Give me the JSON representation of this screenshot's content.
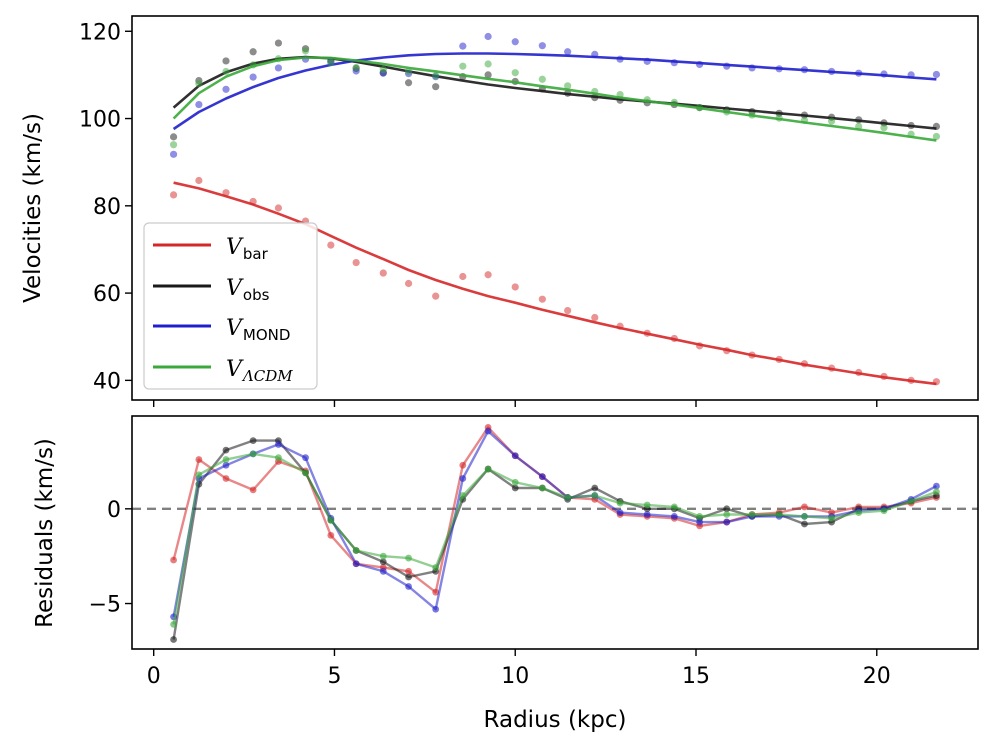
{
  "chart_data": [
    {
      "type": "line",
      "panel": "top",
      "title": "",
      "xlabel": "",
      "ylabel": "Velocities (km/s)",
      "xlim": [
        -0.6,
        22.8
      ],
      "ylim": [
        35.5,
        123.5
      ],
      "xticks": [
        0,
        5,
        10,
        15,
        20
      ],
      "yticks": [
        40,
        60,
        80,
        100,
        120
      ],
      "ytick_labels": [
        "40",
        "60",
        "80",
        "100",
        "120"
      ],
      "legend": {
        "position": "lower-left",
        "entries": [
          {
            "symbol": "V",
            "subscript": "bar",
            "subscript_italic": false,
            "color": "#d62728"
          },
          {
            "symbol": "V",
            "subscript": "obs",
            "subscript_italic": false,
            "color": "#1a1a1a"
          },
          {
            "symbol": "V",
            "subscript": "MOND",
            "subscript_italic": false,
            "color": "#1f1fcc"
          },
          {
            "symbol": "V",
            "subscript": "ΛCDM",
            "subscript_italic": true,
            "color": "#3aa83a"
          }
        ]
      },
      "x": [
        0.55,
        1.25,
        2.0,
        2.75,
        3.45,
        4.2,
        4.9,
        5.6,
        6.35,
        7.05,
        7.8,
        8.55,
        9.25,
        10.0,
        10.75,
        11.45,
        12.2,
        12.9,
        13.65,
        14.4,
        15.1,
        15.85,
        16.55,
        17.3,
        18.0,
        18.75,
        19.5,
        20.2,
        20.95,
        21.65
      ],
      "series": [
        {
          "name": "V_bar",
          "color": "#d62728",
          "points": [
            82.5,
            85.8,
            83.0,
            81.0,
            79.5,
            76.5,
            71.0,
            67.0,
            64.6,
            62.2,
            59.3,
            63.8,
            64.2,
            61.4,
            58.6,
            56.0,
            54.4,
            52.4,
            50.8,
            49.6,
            47.9,
            46.8,
            45.8,
            44.8,
            43.8,
            42.8,
            41.8,
            40.9,
            40.0,
            39.7
          ],
          "model": [
            85.3,
            84.0,
            82.2,
            80.3,
            78.2,
            75.8,
            73.1,
            70.4,
            67.8,
            65.3,
            63.0,
            61.0,
            59.3,
            57.8,
            56.2,
            54.8,
            53.3,
            52.0,
            50.7,
            49.4,
            48.2,
            47.0,
            45.8,
            44.7,
            43.6,
            42.6,
            41.6,
            40.7,
            39.9,
            39.2
          ]
        },
        {
          "name": "V_obs",
          "color": "#1a1a1a",
          "points": [
            95.8,
            108.7,
            113.2,
            115.3,
            117.3,
            116.0,
            113.3,
            111.5,
            110.5,
            108.2,
            107.3,
            109.6,
            110.0,
            108.5,
            106.8,
            105.8,
            104.8,
            104.2,
            103.6,
            103.2,
            102.5,
            102.0,
            101.6,
            101.2,
            100.8,
            100.3,
            99.7,
            99.0,
            98.4,
            98.2
          ],
          "model": [
            102.5,
            107.5,
            110.6,
            112.6,
            113.7,
            114.1,
            113.8,
            113.0,
            111.9,
            110.8,
            109.7,
            108.7,
            107.8,
            107.0,
            106.3,
            105.6,
            105.0,
            104.4,
            103.9,
            103.4,
            102.9,
            102.3,
            101.8,
            101.2,
            100.7,
            100.1,
            99.5,
            98.9,
            98.3,
            97.7
          ]
        },
        {
          "name": "V_MOND",
          "color": "#1f1fcc",
          "points": [
            91.8,
            103.2,
            106.7,
            109.5,
            111.6,
            113.6,
            113.0,
            110.9,
            110.4,
            110.3,
            109.6,
            116.6,
            118.8,
            117.6,
            116.7,
            115.3,
            114.7,
            113.6,
            113.1,
            112.8,
            112.4,
            112.0,
            111.6,
            111.4,
            111.2,
            110.8,
            110.4,
            110.2,
            110.0,
            110.1
          ],
          "model": [
            97.6,
            101.5,
            104.6,
            107.2,
            109.3,
            111.0,
            112.3,
            113.3,
            114.0,
            114.5,
            114.8,
            114.9,
            114.9,
            114.8,
            114.6,
            114.4,
            114.1,
            113.8,
            113.5,
            113.1,
            112.7,
            112.3,
            111.9,
            111.5,
            111.1,
            110.7,
            110.3,
            109.9,
            109.4,
            109.0
          ]
        },
        {
          "name": "V_LCDM",
          "color": "#3aa83a",
          "points": [
            94.0,
            108.0,
            110.8,
            112.3,
            113.7,
            115.5,
            112.8,
            111.7,
            111.2,
            110.8,
            109.8,
            112.0,
            112.5,
            110.5,
            109.0,
            107.5,
            106.2,
            105.5,
            104.3,
            103.7,
            102.5,
            101.5,
            100.8,
            100.1,
            99.6,
            99.4,
            98.2,
            97.9,
            96.4,
            95.9
          ],
          "model": [
            100.0,
            105.8,
            109.6,
            112.0,
            113.4,
            114.0,
            113.9,
            113.3,
            112.5,
            111.6,
            110.8,
            109.9,
            109.1,
            108.3,
            107.4,
            106.6,
            105.7,
            104.8,
            104.0,
            103.2,
            102.4,
            101.5,
            100.7,
            99.9,
            99.1,
            98.3,
            97.5,
            96.7,
            95.8,
            95.0
          ]
        }
      ]
    },
    {
      "type": "line",
      "panel": "bottom",
      "title": "",
      "xlabel": "Radius (kpc)",
      "ylabel": "Residuals (km/s)",
      "xlim": [
        -0.6,
        22.8
      ],
      "ylim": [
        -7.4,
        4.9
      ],
      "xticks": [
        0,
        5,
        10,
        15,
        20
      ],
      "xtick_labels": [
        "0",
        "5",
        "10",
        "15",
        "20"
      ],
      "yticks": [
        -5,
        0
      ],
      "ytick_labels": [
        "−5",
        "0"
      ],
      "zero_line_color": "#808080",
      "x": [
        0.55,
        1.25,
        2.0,
        2.75,
        3.45,
        4.2,
        4.9,
        5.6,
        6.35,
        7.05,
        7.8,
        8.55,
        9.25,
        10.0,
        10.75,
        11.45,
        12.2,
        12.9,
        13.65,
        14.4,
        15.1,
        15.85,
        16.55,
        17.3,
        18.0,
        18.75,
        19.5,
        20.2,
        20.95,
        21.65
      ],
      "series": [
        {
          "name": "bar residual",
          "color": "#d62728",
          "values": [
            -2.7,
            2.6,
            1.6,
            1.0,
            2.5,
            2.0,
            -1.4,
            -2.9,
            -3.1,
            -3.3,
            -4.4,
            2.3,
            4.3,
            2.8,
            1.7,
            0.6,
            0.5,
            -0.3,
            -0.4,
            -0.5,
            -0.9,
            -0.7,
            -0.3,
            -0.2,
            0.1,
            -0.2,
            0.1,
            0.1,
            0.3,
            0.6
          ]
        },
        {
          "name": "obs residual",
          "color": "#1a1a1a",
          "values": [
            -6.9,
            1.3,
            3.1,
            3.6,
            3.6,
            1.9,
            -0.6,
            -2.2,
            -2.8,
            -3.6,
            -3.3,
            0.5,
            2.1,
            1.1,
            1.1,
            0.5,
            1.1,
            0.4,
            0.0,
            0.0,
            -0.5,
            0.0,
            -0.4,
            -0.3,
            -0.8,
            -0.7,
            0.0,
            0.0,
            0.4,
            0.7
          ]
        },
        {
          "name": "MOND residual",
          "color": "#1f1fcc",
          "values": [
            -5.7,
            1.6,
            2.3,
            2.9,
            3.4,
            2.7,
            -0.5,
            -2.9,
            -3.3,
            -4.1,
            -5.3,
            1.6,
            4.1,
            2.8,
            1.7,
            0.6,
            0.7,
            -0.2,
            -0.3,
            -0.4,
            -0.7,
            -0.7,
            -0.4,
            -0.4,
            -0.4,
            -0.4,
            -0.1,
            0.0,
            0.5,
            1.2
          ]
        },
        {
          "name": "LCDM residual",
          "color": "#3aa83a",
          "values": [
            -6.1,
            1.8,
            2.6,
            2.9,
            2.7,
            1.9,
            -0.6,
            -2.2,
            -2.5,
            -2.6,
            -3.1,
            0.7,
            2.1,
            1.4,
            1.1,
            0.6,
            0.7,
            0.3,
            0.2,
            0.1,
            -0.4,
            -0.3,
            -0.3,
            -0.3,
            -0.4,
            -0.5,
            -0.2,
            -0.1,
            0.4,
            0.9
          ]
        }
      ]
    }
  ]
}
